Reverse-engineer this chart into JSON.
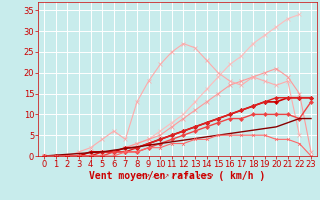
{
  "background_color": "#c8ecec",
  "grid_color": "#b8d8d8",
  "xlabel": "Vent moyen/en rafales ( km/h )",
  "xlabel_color": "#cc0000",
  "xlabel_fontsize": 7,
  "xlim": [
    -0.5,
    23.5
  ],
  "ylim": [
    0,
    37
  ],
  "xticks": [
    0,
    1,
    2,
    3,
    4,
    5,
    6,
    7,
    8,
    9,
    10,
    11,
    12,
    13,
    14,
    15,
    16,
    17,
    18,
    19,
    20,
    21,
    22,
    23
  ],
  "yticks": [
    0,
    5,
    10,
    15,
    20,
    25,
    30,
    35
  ],
  "tick_color": "#cc0000",
  "tick_fontsize": 6,
  "series": [
    {
      "x": [
        0,
        1,
        2,
        3,
        4,
        5,
        6,
        7,
        8,
        9,
        10,
        11,
        12,
        13,
        14,
        15,
        16,
        17,
        18,
        19,
        20,
        21,
        22
      ],
      "y": [
        0,
        0,
        0,
        0,
        1,
        1,
        1,
        2,
        3,
        4,
        6,
        8,
        10,
        13,
        16,
        19,
        22,
        24,
        27,
        29,
        31,
        33,
        34
      ],
      "color": "#ffbbbb",
      "marker": "x",
      "linewidth": 0.8,
      "markersize": 3
    },
    {
      "x": [
        0,
        1,
        2,
        3,
        4,
        5,
        6,
        7,
        8,
        9,
        10,
        11,
        12,
        13,
        14,
        15,
        16,
        17,
        18,
        19,
        20,
        21,
        22,
        23
      ],
      "y": [
        0,
        0,
        0,
        0,
        0,
        1,
        1,
        2,
        3,
        4,
        5,
        7,
        9,
        11,
        13,
        15,
        17,
        18,
        19,
        20,
        21,
        19,
        15,
        1
      ],
      "color": "#ff9999",
      "marker": "x",
      "linewidth": 0.8,
      "markersize": 3
    },
    {
      "x": [
        0,
        1,
        2,
        3,
        4,
        5,
        6,
        7,
        8,
        9,
        10,
        11,
        12,
        13,
        14,
        15,
        16,
        17,
        18,
        19,
        20,
        21,
        22
      ],
      "y": [
        0,
        0,
        0,
        1,
        2,
        4,
        6,
        4,
        13,
        18,
        22,
        25,
        27,
        26,
        23,
        20,
        18,
        17,
        19,
        18,
        17,
        18,
        5
      ],
      "color": "#ffaaaa",
      "marker": "x",
      "linewidth": 0.8,
      "markersize": 3
    },
    {
      "x": [
        0,
        1,
        2,
        3,
        4,
        5,
        6,
        7,
        8,
        9,
        10,
        11,
        12,
        13,
        14,
        15,
        16,
        17,
        18,
        19,
        20,
        21,
        22,
        23
      ],
      "y": [
        0,
        0,
        0,
        0,
        1,
        1,
        1,
        2,
        2,
        3,
        4,
        5,
        6,
        7,
        8,
        9,
        10,
        11,
        12,
        13,
        13,
        14,
        14,
        14
      ],
      "color": "#cc0000",
      "marker": "D",
      "linewidth": 1.2,
      "markersize": 2
    },
    {
      "x": [
        0,
        1,
        2,
        3,
        4,
        5,
        6,
        7,
        8,
        9,
        10,
        11,
        12,
        13,
        14,
        15,
        16,
        17,
        18,
        19,
        20,
        21,
        22,
        23
      ],
      "y": [
        0,
        0,
        0,
        0,
        0,
        1,
        1,
        1,
        2,
        3,
        4,
        5,
        6,
        7,
        8,
        9,
        10,
        11,
        12,
        13,
        14,
        14,
        14,
        14
      ],
      "color": "#dd2222",
      "marker": "D",
      "linewidth": 1.0,
      "markersize": 2
    },
    {
      "x": [
        0,
        1,
        2,
        3,
        4,
        5,
        6,
        7,
        8,
        9,
        10,
        11,
        12,
        13,
        14,
        15,
        16,
        17,
        18,
        19,
        20,
        21,
        22,
        23
      ],
      "y": [
        0,
        0,
        0,
        0,
        0,
        0,
        1,
        1,
        1,
        2,
        3,
        4,
        5,
        6,
        7,
        8,
        9,
        9,
        10,
        10,
        10,
        10,
        9,
        13
      ],
      "color": "#ee4444",
      "marker": "D",
      "linewidth": 1.0,
      "markersize": 2
    },
    {
      "x": [
        0,
        5,
        10,
        15,
        20,
        22,
        23
      ],
      "y": [
        0,
        1,
        3,
        5,
        7,
        9,
        9
      ],
      "color": "#880000",
      "marker": null,
      "linewidth": 1.0,
      "markersize": 2
    },
    {
      "x": [
        0,
        1,
        2,
        3,
        4,
        5,
        6,
        7,
        8,
        9,
        10,
        11,
        12,
        13,
        14,
        15,
        16,
        17,
        18,
        19,
        20,
        21,
        22,
        23
      ],
      "y": [
        0,
        0,
        0,
        0,
        0,
        0,
        0,
        1,
        1,
        2,
        2,
        3,
        3,
        4,
        4,
        5,
        5,
        5,
        5,
        5,
        4,
        4,
        3,
        0
      ],
      "color": "#ff6666",
      "marker": "x",
      "linewidth": 0.8,
      "markersize": 2
    }
  ]
}
